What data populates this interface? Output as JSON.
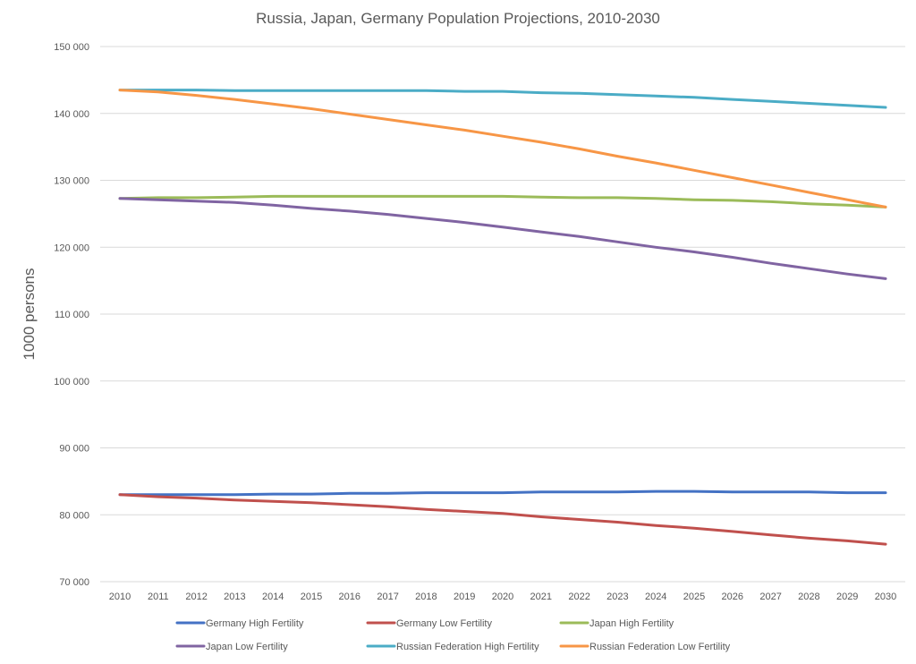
{
  "chart_data": {
    "type": "line",
    "title": "Russia, Japan, Germany Population Projections, 2010-2030",
    "ylabel": "1000 persons",
    "xlabel": "",
    "x": [
      "2010",
      "2011",
      "2012",
      "2013",
      "2014",
      "2015",
      "2016",
      "2017",
      "2018",
      "2019",
      "2020",
      "2021",
      "2022",
      "2023",
      "2024",
      "2025",
      "2026",
      "2027",
      "2028",
      "2029",
      "2030"
    ],
    "ylim": [
      70000,
      150000
    ],
    "yticks": [
      70000,
      80000,
      90000,
      100000,
      110000,
      120000,
      130000,
      140000,
      150000
    ],
    "ytick_labels": [
      "70 000",
      "80 000",
      "90 000",
      "100 000",
      "110 000",
      "120 000",
      "130 000",
      "140 000",
      "150 000"
    ],
    "grid": "horizontal",
    "legend_position": "bottom",
    "series": [
      {
        "name": "Germany High Fertility",
        "color": "#4472c4",
        "values": [
          83000,
          83000,
          83000,
          83000,
          83100,
          83100,
          83200,
          83200,
          83300,
          83300,
          83300,
          83400,
          83400,
          83400,
          83500,
          83500,
          83400,
          83400,
          83400,
          83300,
          83300
        ]
      },
      {
        "name": "Germany Low Fertility",
        "color": "#c0504d",
        "values": [
          83000,
          82700,
          82500,
          82200,
          82000,
          81800,
          81500,
          81200,
          80800,
          80500,
          80200,
          79700,
          79300,
          78900,
          78400,
          78000,
          77500,
          77000,
          76500,
          76100,
          75600
        ]
      },
      {
        "name": "Japan High Fertility",
        "color": "#9bbb59",
        "values": [
          127300,
          127400,
          127400,
          127500,
          127600,
          127600,
          127600,
          127600,
          127600,
          127600,
          127600,
          127500,
          127400,
          127400,
          127300,
          127100,
          127000,
          126800,
          126500,
          126300,
          126000
        ]
      },
      {
        "name": "Japan Low Fertility",
        "color": "#8064a2",
        "values": [
          127300,
          127100,
          126900,
          126700,
          126300,
          125800,
          125400,
          124900,
          124300,
          123700,
          123000,
          122300,
          121600,
          120800,
          120000,
          119300,
          118500,
          117600,
          116800,
          116000,
          115300
        ]
      },
      {
        "name": "Russian Federation High Fertility",
        "color": "#4bacc6",
        "values": [
          143500,
          143500,
          143500,
          143400,
          143400,
          143400,
          143400,
          143400,
          143400,
          143300,
          143300,
          143100,
          143000,
          142800,
          142600,
          142400,
          142100,
          141800,
          141500,
          141200,
          140900
        ]
      },
      {
        "name": "Russian Federation Low Fertility",
        "color": "#f79646",
        "values": [
          143500,
          143200,
          142700,
          142100,
          141400,
          140700,
          139900,
          139100,
          138300,
          137500,
          136600,
          135700,
          134700,
          133600,
          132600,
          131500,
          130400,
          129300,
          128200,
          127100,
          126000
        ]
      }
    ]
  }
}
